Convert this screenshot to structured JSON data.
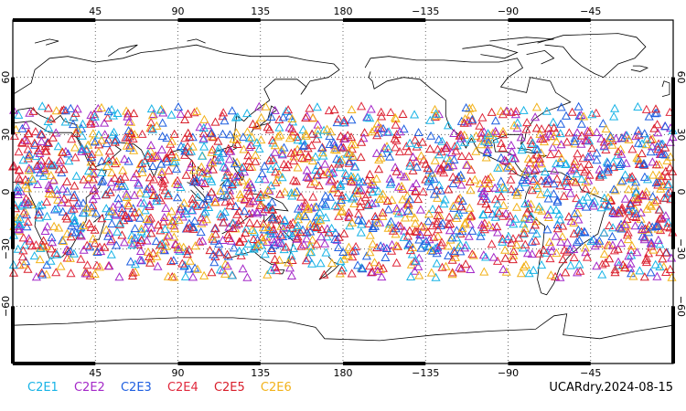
{
  "map": {
    "lon_labels_top": [
      "45",
      "90",
      "135",
      "180",
      "−135",
      "−90",
      "−45"
    ],
    "lon_labels_bottom": [
      "45",
      "90",
      "135",
      "180",
      "−135",
      "−90",
      "−45"
    ],
    "lat_labels_left": [
      "60",
      "30",
      "0",
      "−30",
      "−60"
    ],
    "lat_labels_right": [
      "60",
      "30",
      "0",
      "−30",
      "−60"
    ],
    "lon_range": [
      0,
      360
    ],
    "lat_range": [
      -90,
      90
    ],
    "grid": "dotted",
    "marker": "open-triangle",
    "observation_lat_band": [
      -45,
      45
    ]
  },
  "legend": [
    {
      "label": "C2E1",
      "color": "#17b3e6"
    },
    {
      "label": "C2E2",
      "color": "#a428c8"
    },
    {
      "label": "C2E3",
      "color": "#1f5fe0"
    },
    {
      "label": "C2E4",
      "color": "#e0283c"
    },
    {
      "label": "C2E5",
      "color": "#d81e2a"
    },
    {
      "label": "C2E6",
      "color": "#f2b21a"
    }
  ],
  "caption": "UCARdry.2024-08-15"
}
